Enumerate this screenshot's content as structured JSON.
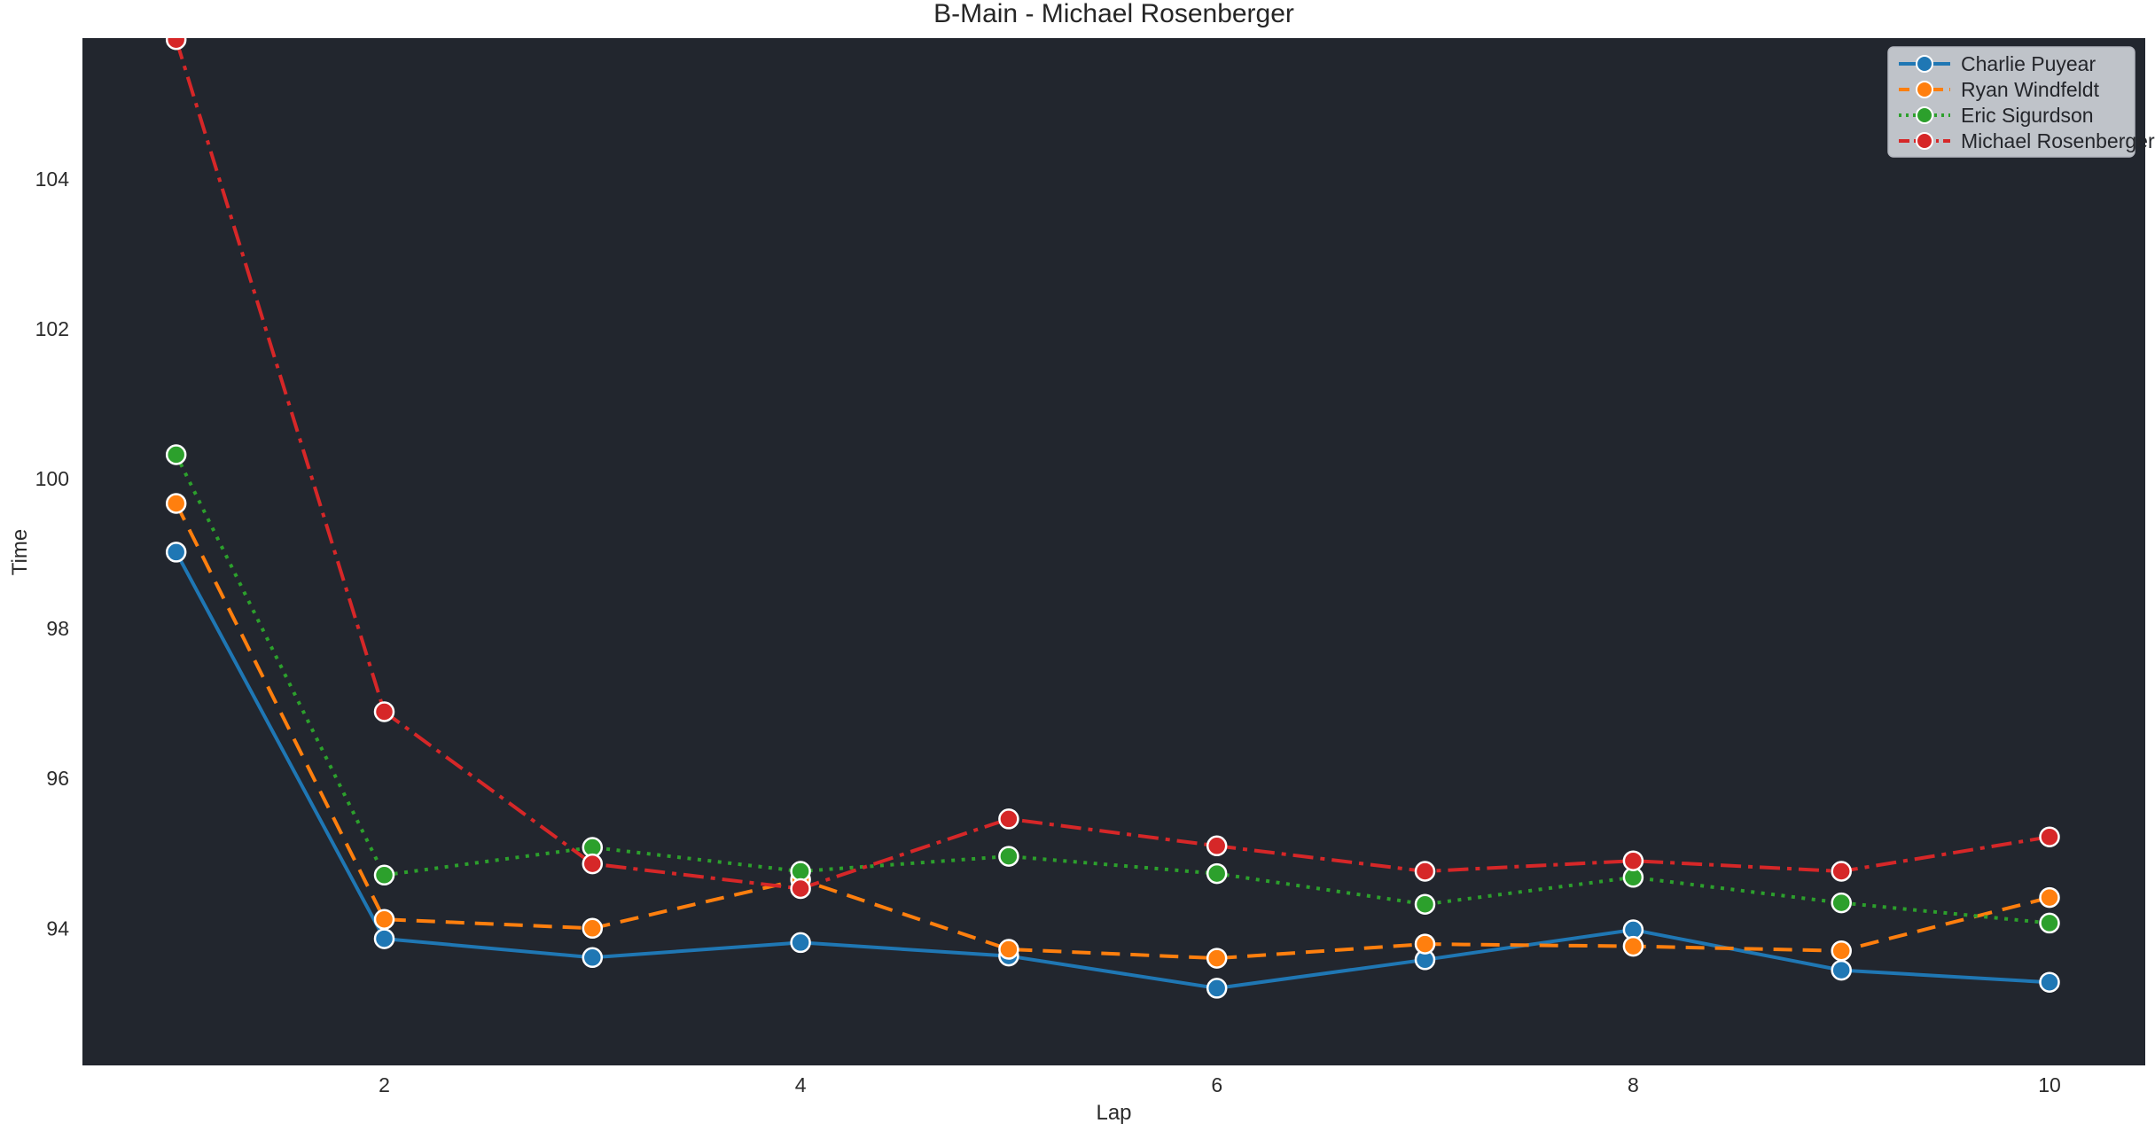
{
  "chart_data": {
    "type": "line",
    "title": "B-Main - Michael Rosenberger",
    "xlabel": "Lap",
    "ylabel": "Time",
    "x": [
      1,
      2,
      3,
      4,
      5,
      6,
      7,
      8,
      9,
      10
    ],
    "series": [
      {
        "name": "Charlie Puyear",
        "color": "#1f77b4",
        "style": "solid",
        "values": [
          99.02,
          93.86,
          93.61,
          93.81,
          93.63,
          93.2,
          93.58,
          93.98,
          93.44,
          93.28
        ]
      },
      {
        "name": "Ryan Windfeldt",
        "color": "#ff7f0e",
        "style": "dashed",
        "values": [
          99.67,
          94.12,
          94.0,
          94.65,
          93.72,
          93.6,
          93.79,
          93.76,
          93.7,
          94.41
        ]
      },
      {
        "name": "Eric Sigurdson",
        "color": "#2ca02c",
        "style": "dotted",
        "values": [
          100.32,
          94.71,
          95.08,
          94.76,
          94.96,
          94.73,
          94.32,
          94.68,
          94.34,
          94.07
        ]
      },
      {
        "name": "Michael Rosenberger",
        "color": "#d62728",
        "style": "dashdot",
        "values": [
          105.86,
          96.89,
          94.86,
          94.53,
          95.46,
          95.1,
          94.76,
          94.9,
          94.76,
          95.22
        ]
      }
    ],
    "xticks": [
      2,
      4,
      6,
      8,
      10
    ],
    "yticks": [
      94,
      96,
      98,
      100,
      102,
      104
    ],
    "xlim": [
      0.55,
      10.46
    ],
    "ylim": [
      92.17,
      105.88
    ],
    "grid": false,
    "legend_position": "upper right"
  },
  "colors": {
    "figure_bg": "#ffffff",
    "axes_bg": "#22262e",
    "text": "#262626",
    "legend_bg": "#cdd0d7",
    "legend_border": "#b4b7bf",
    "marker_edge": "#ffffff"
  }
}
